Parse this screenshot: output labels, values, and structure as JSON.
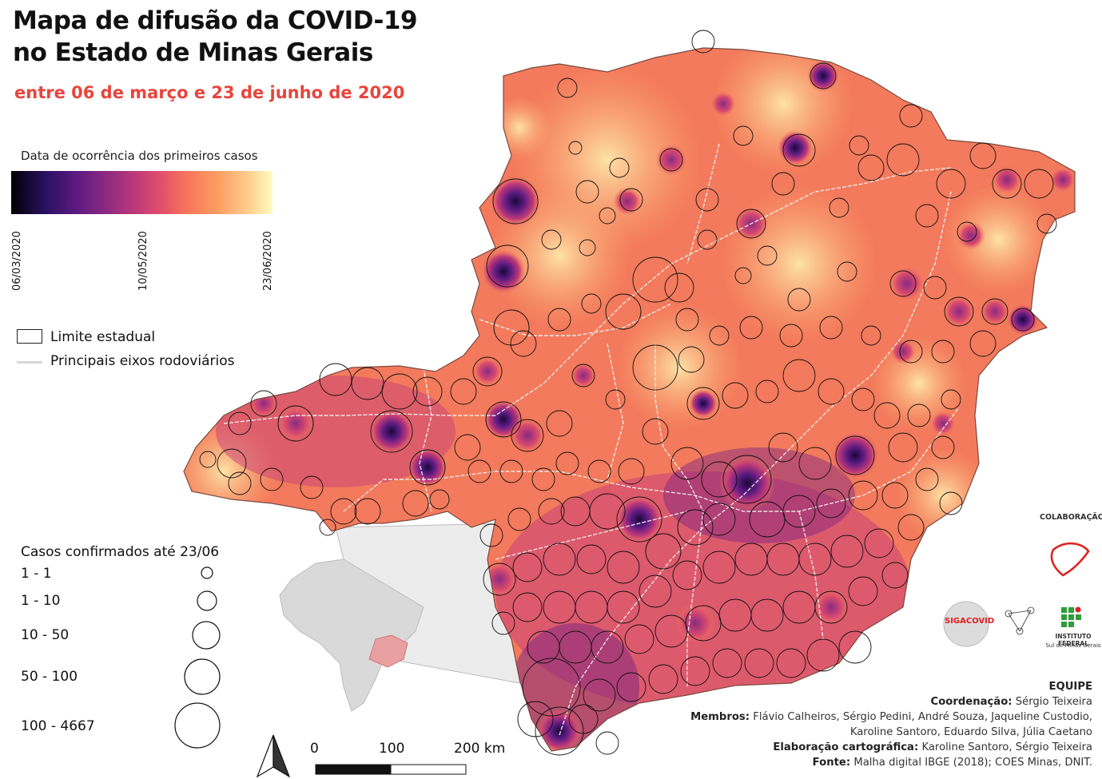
{
  "title_line1": "Mapa de difusão da COVID-19",
  "title_line2": "no Estado de Minas Gerais",
  "subtitle": "entre 06 de março e 23 de junho de 2020",
  "date_legend": {
    "title": "Data de ocorrência dos primeiros casos",
    "ticks": [
      "06/03/2020",
      "10/05/2020",
      "23/06/2020"
    ]
  },
  "layer_legend": {
    "boundary": "Limite estadual",
    "roads": "Principais eixos rodoviários"
  },
  "cases_legend": {
    "title": "Casos confirmados até 23/06",
    "classes": [
      "1 - 1",
      "1 - 10",
      "10 - 50",
      "50 - 100",
      "100 - 4667"
    ]
  },
  "scale_bar": {
    "labels": [
      "0",
      "100",
      "200 km"
    ]
  },
  "collaboration": {
    "label": "COLABORAÇÃO",
    "logo_text_1": "SIGACOVID",
    "logo_text_2": "INSTITUTO FEDERAL",
    "logo_text_3": "Sul de Minas Gerais"
  },
  "team": {
    "heading": "EQUIPE",
    "coord_label": "Coordenação:",
    "coord_value": "Sérgio Teixeira",
    "members_label": "Membros:",
    "members_value_1": "Flávio Calheiros, Sérgio Pedini, André Souza, Jaqueline Custodio,",
    "members_value_2": "Karoline Santoro, Eduardo Silva, Júlia Caetano",
    "carto_label": "Elaboração cartográfica:",
    "carto_value": "Karoline Santoro, Sérgio Teixeira",
    "source_label": "Fonte:",
    "source_value": "Malha digital IBGE (2018); COES Minas, DNIT."
  },
  "colors": {
    "title": "#111111",
    "subtitle": "#e8453c",
    "map_base": "#f37a5c",
    "map_light": "#fdd49a",
    "hot": "#3b0f6f",
    "inset_brazil": "#d9d9d9",
    "inset_mg": "#e8a0a0"
  }
}
